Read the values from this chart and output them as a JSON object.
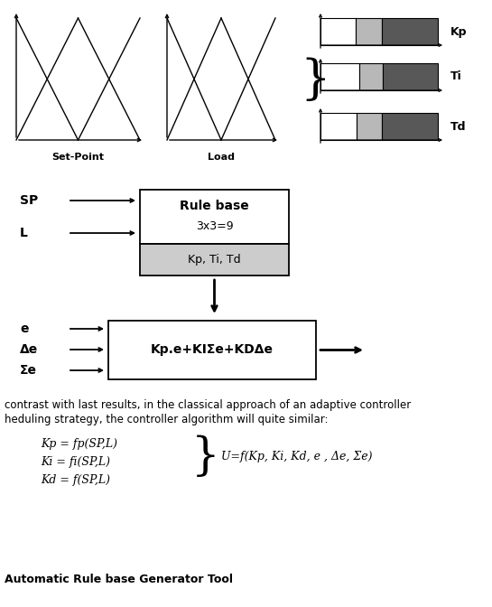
{
  "bg_color": "#ffffff",
  "bar_colors": [
    "#ffffff",
    "#b8b8b8",
    "#585858"
  ],
  "bar_kp": [
    0.3,
    0.22,
    0.48
  ],
  "bar_ti": [
    0.33,
    0.2,
    0.47
  ],
  "bar_td": [
    0.31,
    0.21,
    0.48
  ],
  "labels_right": [
    "Kp",
    "Ti",
    "Td"
  ],
  "text_setpoint": "Set-Point",
  "text_load": "Load",
  "block1_title": "Rule base",
  "block1_sub": "3x3=9",
  "block1_output": "Kp, Ti, Td",
  "block2_text": "Kp.e+KIΣe+KDΔe",
  "sp_label": "SP",
  "l_label": "L",
  "e_label": "e",
  "de_label": "Δe",
  "se_label": "Σe",
  "text_line1": "contrast with last results, in the classical approach of an adaptive controller",
  "text_line2": "heduling strategy, the controller algorithm will quite similar:",
  "eq1": "Kp = fp(SP,L)",
  "eq2": "Ki = fi(SP,L)",
  "eq3": "Kd = f(SP,L)",
  "eq_right": "U=f(Kp, Ki, Kd, e , Δe, Σe)",
  "footer": "Automatic Rule base Generator Tool"
}
